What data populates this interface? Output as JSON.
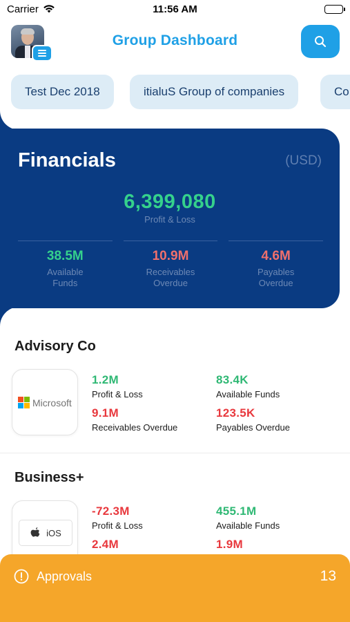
{
  "status_bar": {
    "carrier": "Carrier",
    "time": "11:56 AM"
  },
  "header": {
    "title": "Group Dashboard",
    "icons": [
      "menu-icon",
      "search-icon"
    ]
  },
  "chips": [
    "Test Dec 2018",
    "itialuS Group of companies",
    "Co"
  ],
  "financials": {
    "title": "Financials",
    "currency": "(USD)",
    "total": "6,399,080",
    "total_label": "Profit & Loss",
    "stats": [
      {
        "value": "38.5M",
        "label_1": "Available",
        "label_2": "Funds",
        "status": "positive"
      },
      {
        "value": "10.9M",
        "label_1": "Receivables",
        "label_2": "Overdue",
        "status": "negative"
      },
      {
        "value": "4.6M",
        "label_1": "Payables",
        "label_2": "Overdue",
        "status": "negative"
      }
    ]
  },
  "companies": [
    {
      "name": "Advisory Co",
      "logo_text": "Microsoft",
      "metrics": [
        {
          "value": "1.2M",
          "label": "Profit & Loss",
          "status": "positive"
        },
        {
          "value": "83.4K",
          "label": "Available Funds",
          "status": "positive"
        },
        {
          "value": "9.1M",
          "label": "Receivables Overdue",
          "status": "negative"
        },
        {
          "value": "123.5K",
          "label": "Payables Overdue",
          "status": "negative"
        }
      ]
    },
    {
      "name": "Business+",
      "logo_text": "iOS",
      "metrics": [
        {
          "value": "-72.3M",
          "label": "Profit & Loss",
          "status": "negative"
        },
        {
          "value": "455.1M",
          "label": "Available Funds",
          "status": "positive"
        },
        {
          "value": "2.4M",
          "label": "",
          "status": "negative"
        },
        {
          "value": "1.9M",
          "label": "",
          "status": "negative"
        }
      ]
    }
  ],
  "approvals": {
    "label": "Approvals",
    "count": "13",
    "icon": "alert-circle-icon"
  },
  "colors": {
    "accent": "#1fa0e6",
    "card": "#0a3b82",
    "positive": "#35d18c",
    "negative": "#f0706c",
    "approvals": "#f5a62a"
  }
}
